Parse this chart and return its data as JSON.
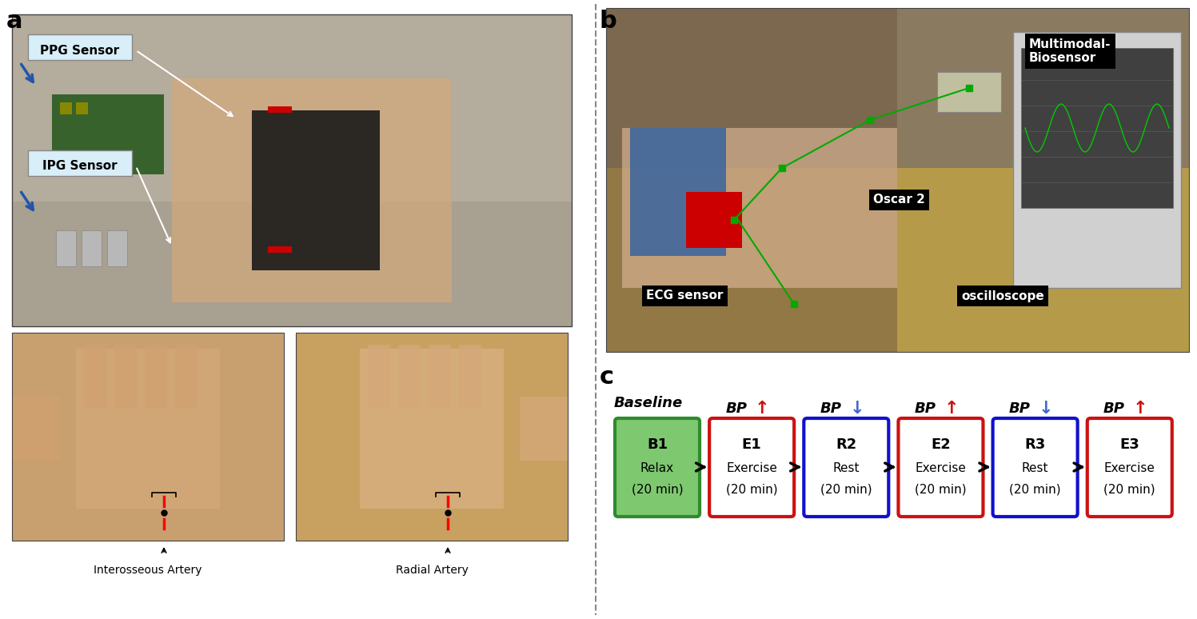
{
  "panel_a_label": "a",
  "panel_b_label": "b",
  "panel_c_label": "c",
  "background_color": "#ffffff",
  "baseline_label": "Baseline",
  "boxes": [
    {
      "id": "B1",
      "line1": "B1",
      "line2": "Relax",
      "line3": "(20 min)",
      "border_color": "#2e8b2e",
      "fill_color": "#7ec870",
      "bp_text": "",
      "bp_arrow": "",
      "bp_arrow_color": "",
      "is_baseline": true
    },
    {
      "id": "E1",
      "line1": "E1",
      "line2": "Exercise",
      "line3": "(20 min)",
      "border_color": "#cc1111",
      "fill_color": "#ffffff",
      "bp_text": "BP",
      "bp_arrow": "↑",
      "bp_arrow_color": "#cc1111",
      "is_baseline": false
    },
    {
      "id": "R2",
      "line1": "R2",
      "line2": "Rest",
      "line3": "(20 min)",
      "border_color": "#1111cc",
      "fill_color": "#ffffff",
      "bp_text": "BP",
      "bp_arrow": "↓",
      "bp_arrow_color": "#4466cc",
      "is_baseline": false
    },
    {
      "id": "E2",
      "line1": "E2",
      "line2": "Exercise",
      "line3": "(20 min)",
      "border_color": "#cc1111",
      "fill_color": "#ffffff",
      "bp_text": "BP",
      "bp_arrow": "↑",
      "bp_arrow_color": "#cc1111",
      "is_baseline": false
    },
    {
      "id": "R3",
      "line1": "R3",
      "line2": "Rest",
      "line3": "(20 min)",
      "border_color": "#1111cc",
      "fill_color": "#ffffff",
      "bp_text": "BP",
      "bp_arrow": "↓",
      "bp_arrow_color": "#4466cc",
      "is_baseline": false
    },
    {
      "id": "E3",
      "line1": "E3",
      "line2": "Exercise",
      "line3": "(20 min)",
      "border_color": "#cc1111",
      "fill_color": "#ffffff",
      "bp_text": "BP",
      "bp_arrow": "↑",
      "bp_arrow_color": "#cc1111",
      "is_baseline": false
    }
  ],
  "interosseous_label": "Interosseous Artery",
  "radial_label": "Radial Artery",
  "ppg_label": "PPG Sensor",
  "ipg_label": "IPG Sensor",
  "multimodal_label": "Multimodal-\nBiosensor",
  "oscar_label": "Oscar 2",
  "ecg_label": "ECG sensor",
  "oscilloscope_label": "oscilloscope",
  "photo_a_top_color": "#b0a898",
  "photo_a_bl_color": "#c4a882",
  "photo_a_br_color": "#c8a878",
  "photo_b_color": "#9a8870",
  "photo_b_desk_color": "#c8a850",
  "divider_color": "#888888"
}
